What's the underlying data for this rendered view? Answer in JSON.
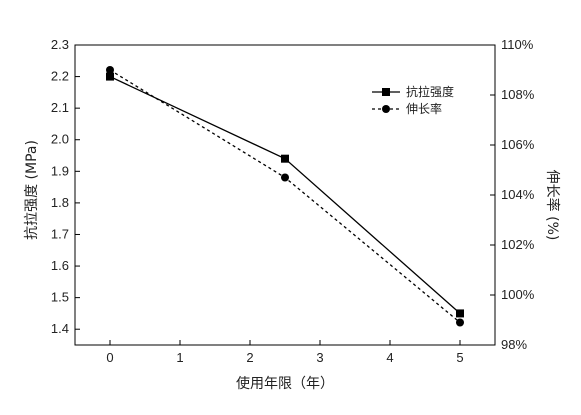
{
  "chart_data": {
    "type": "line",
    "xlabel": "使用年限（年）",
    "ylabel": "抗拉强度 (MPa)",
    "y2label": "伸长率 (%)",
    "x_ticks": [
      "0",
      "1",
      "2",
      "3",
      "4",
      "5"
    ],
    "xlim": [
      -0.5,
      5.5
    ],
    "ylim": [
      1.35,
      2.3
    ],
    "y_ticks": [
      "1.4",
      "1.5",
      "1.6",
      "1.7",
      "1.8",
      "1.9",
      "2.0",
      "2.1",
      "2.2",
      "2.3"
    ],
    "y2lim": [
      98,
      110
    ],
    "y2_ticks": [
      "98%",
      "100%",
      "102%",
      "104%",
      "106%",
      "108%",
      "110%"
    ],
    "legend_position": "top-right",
    "grid": false,
    "series": [
      {
        "name": "抗拉强度",
        "axis": "left",
        "marker": "square",
        "line_style": "solid",
        "color": "#000000",
        "x": [
          0,
          2.5,
          5
        ],
        "y": [
          2.2,
          1.94,
          1.45
        ]
      },
      {
        "name": "伸长率",
        "axis": "right",
        "marker": "circle",
        "line_style": "dotted",
        "color": "#000000",
        "x": [
          0,
          2.5,
          5
        ],
        "y": [
          109.0,
          104.7,
          98.9
        ]
      }
    ]
  }
}
